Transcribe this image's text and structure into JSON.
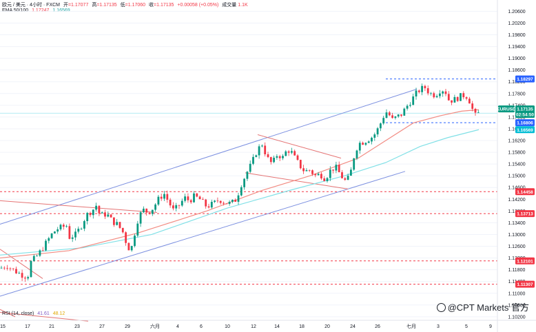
{
  "header": {
    "symbol": "欧元 / 美元 · 4小时 · FXCM",
    "open_label": "开",
    "open": "=1.17077",
    "high_label": "高",
    "high": "=1.17135",
    "low_label": "低",
    "low": "=1.17060",
    "close_label": "收",
    "close": "=1.17135",
    "change": "+0.00058 (+0.05%)",
    "volume_label": "成交量",
    "volume": "1.1K",
    "ema_label": "EMA 50/100",
    "ema50": "1.17247",
    "ema100": "1.16569"
  },
  "rsi": {
    "label": "RSI (14, close)",
    "value1": "41.61",
    "value2": "48.12"
  },
  "watermark": "@CPT Markets 官方",
  "colors": {
    "up": "#089981",
    "down": "#f23645",
    "ema50": "#f28b82",
    "ema100": "#7fe0e6",
    "channel": "#7b8fe0",
    "pennant": "#e57373",
    "blue_tag": "#2962ff",
    "red_tag": "#f23645"
  },
  "chart_data": {
    "type": "candlestick",
    "symbol": "EURUSD",
    "timeframe": "4H",
    "x_tick_labels": [
      "15",
      "17",
      "21",
      "23",
      "27",
      "29",
      "六月",
      "4",
      "6",
      "10",
      "12",
      "14",
      "18",
      "20",
      "24",
      "26",
      "七月",
      "3",
      "5",
      "9"
    ],
    "y_tick_labels": [
      "1.20600",
      "1.20200",
      "1.19800",
      "1.19400",
      "1.19000",
      "1.18600",
      "1.18200",
      "1.17800",
      "1.17400",
      "1.17000",
      "1.16600",
      "1.16200",
      "1.15800",
      "1.15400",
      "1.15000",
      "1.14600",
      "1.14200",
      "1.13800",
      "1.13400",
      "1.13000",
      "1.12600",
      "1.12200",
      "1.11800",
      "1.11400",
      "1.11000",
      "1.10600",
      "1.10200"
    ],
    "ylim": [
      1.1015,
      1.2075
    ],
    "price_tags": [
      {
        "text": "1.18297",
        "value": 1.18297,
        "color": "#2962ff"
      },
      {
        "text": "1.17247",
        "value": 1.17247,
        "color": "#f23645"
      },
      {
        "text": "EURUSD",
        "value": 1.17135,
        "color": "#089981"
      },
      {
        "text": "1.16806",
        "value": 1.16806,
        "color": "#2962ff"
      },
      {
        "text": "1.16569",
        "value": 1.16569,
        "color": "#00bcd4"
      },
      {
        "text": "1.14458",
        "value": 1.14458,
        "color": "#f23645"
      },
      {
        "text": "1.13713",
        "value": 1.13713,
        "color": "#f23645"
      },
      {
        "text": "1.12101",
        "value": 1.12101,
        "color": "#f23645"
      },
      {
        "text": "1.11307",
        "value": 1.11307,
        "color": "#f23645"
      }
    ],
    "last_price": "1.17135",
    "countdown": "02:54:50",
    "key_levels": [
      1.18297,
      1.16806,
      1.14458,
      1.13713,
      1.12101,
      1.11307
    ],
    "close_path": [
      [
        0,
        1.1185
      ],
      [
        10,
        1.1195
      ],
      [
        20,
        1.1178
      ],
      [
        30,
        1.1165
      ],
      [
        40,
        1.1155
      ],
      [
        45,
        1.1206
      ],
      [
        55,
        1.123
      ],
      [
        65,
        1.1265
      ],
      [
        75,
        1.13
      ],
      [
        82,
        1.1318
      ],
      [
        90,
        1.1325
      ],
      [
        97,
        1.133
      ],
      [
        100,
        1.129
      ],
      [
        110,
        1.13
      ],
      [
        118,
        1.133
      ],
      [
        125,
        1.1365
      ],
      [
        135,
        1.1385
      ],
      [
        140,
        1.14
      ],
      [
        145,
        1.1365
      ],
      [
        155,
        1.137
      ],
      [
        163,
        1.1345
      ],
      [
        170,
        1.1335
      ],
      [
        178,
        1.131
      ],
      [
        185,
        1.126
      ],
      [
        190,
        1.1245
      ],
      [
        195,
        1.13
      ],
      [
        200,
        1.135
      ],
      [
        207,
        1.1385
      ],
      [
        215,
        1.1375
      ],
      [
        222,
        1.139
      ],
      [
        230,
        1.142
      ],
      [
        238,
        1.144
      ],
      [
        245,
        1.141
      ],
      [
        252,
        1.138
      ],
      [
        260,
        1.14
      ],
      [
        268,
        1.1425
      ],
      [
        275,
        1.1415
      ],
      [
        282,
        1.143
      ],
      [
        290,
        1.142
      ],
      [
        300,
        1.1395
      ],
      [
        310,
        1.1405
      ],
      [
        318,
        1.142
      ],
      [
        325,
        1.141
      ],
      [
        335,
        1.1405
      ],
      [
        343,
        1.142
      ],
      [
        350,
        1.147
      ],
      [
        358,
        1.151
      ],
      [
        365,
        1.154
      ],
      [
        372,
        1.158
      ],
      [
        380,
        1.161
      ],
      [
        388,
        1.156
      ],
      [
        395,
        1.154
      ],
      [
        403,
        1.1575
      ],
      [
        410,
        1.156
      ],
      [
        417,
        1.159
      ],
      [
        423,
        1.158
      ],
      [
        428,
        1.156
      ],
      [
        435,
        1.1535
      ],
      [
        442,
        1.1515
      ],
      [
        450,
        1.152
      ],
      [
        457,
        1.15
      ],
      [
        465,
        1.1505
      ],
      [
        472,
        1.149
      ],
      [
        480,
        1.152
      ],
      [
        487,
        1.153
      ],
      [
        495,
        1.15
      ],
      [
        502,
        1.148
      ],
      [
        508,
        1.15
      ],
      [
        513,
        1.156
      ],
      [
        520,
        1.161
      ],
      [
        527,
        1.1615
      ],
      [
        535,
        1.1625
      ],
      [
        542,
        1.1635
      ],
      [
        550,
        1.1665
      ],
      [
        556,
        1.17
      ],
      [
        562,
        1.172
      ],
      [
        569,
        1.169
      ],
      [
        576,
        1.17
      ],
      [
        583,
        1.171
      ],
      [
        590,
        1.1735
      ],
      [
        598,
        1.176
      ],
      [
        604,
        1.178
      ],
      [
        610,
        1.1795
      ],
      [
        617,
        1.18
      ],
      [
        624,
        1.178
      ],
      [
        632,
        1.1775
      ],
      [
        640,
        1.1795
      ],
      [
        646,
        1.179
      ],
      [
        652,
        1.1755
      ],
      [
        660,
        1.176
      ],
      [
        668,
        1.177
      ],
      [
        675,
        1.1775
      ],
      [
        680,
        1.1765
      ],
      [
        685,
        1.173
      ],
      [
        690,
        1.1705
      ],
      [
        695,
        1.1713
      ]
    ],
    "ema50": [
      [
        0,
        1.122
      ],
      [
        100,
        1.1245
      ],
      [
        200,
        1.1305
      ],
      [
        300,
        1.138
      ],
      [
        380,
        1.145
      ],
      [
        450,
        1.15
      ],
      [
        520,
        1.156
      ],
      [
        560,
        1.162
      ],
      [
        600,
        1.168
      ],
      [
        640,
        1.1705
      ],
      [
        670,
        1.172
      ],
      [
        695,
        1.1725
      ]
    ],
    "ema100": [
      [
        0,
        1.123
      ],
      [
        120,
        1.1255
      ],
      [
        220,
        1.13
      ],
      [
        330,
        1.139
      ],
      [
        420,
        1.145
      ],
      [
        500,
        1.15
      ],
      [
        560,
        1.1545
      ],
      [
        610,
        1.16
      ],
      [
        650,
        1.163
      ],
      [
        695,
        1.1657
      ]
    ],
    "ascending_channel": {
      "upper": [
        [
          0,
          1.1335
        ],
        [
          605,
          1.1795
        ]
      ],
      "lower": [
        [
          0,
          1.109
        ],
        [
          588,
          1.1515
        ]
      ]
    },
    "descending_lines": [
      {
        "from": [
          0,
          1.1415
        ],
        "to": [
          228,
          1.1375
        ]
      },
      {
        "from": [
          0,
          1.125
        ],
        "to": [
          62,
          1.115
        ]
      },
      {
        "from": [
          0,
          1.1035
        ],
        "to": [
          128,
          1.1005
        ]
      },
      {
        "from": [
          0,
          1.1045
        ],
        "to": [
          22,
          1.102
        ]
      }
    ],
    "pennant": {
      "upper": [
        [
          374,
          1.164
        ],
        [
          495,
          1.156
        ]
      ],
      "lower": [
        [
          356,
          1.151
        ],
        [
          505,
          1.1455
        ]
      ]
    }
  }
}
